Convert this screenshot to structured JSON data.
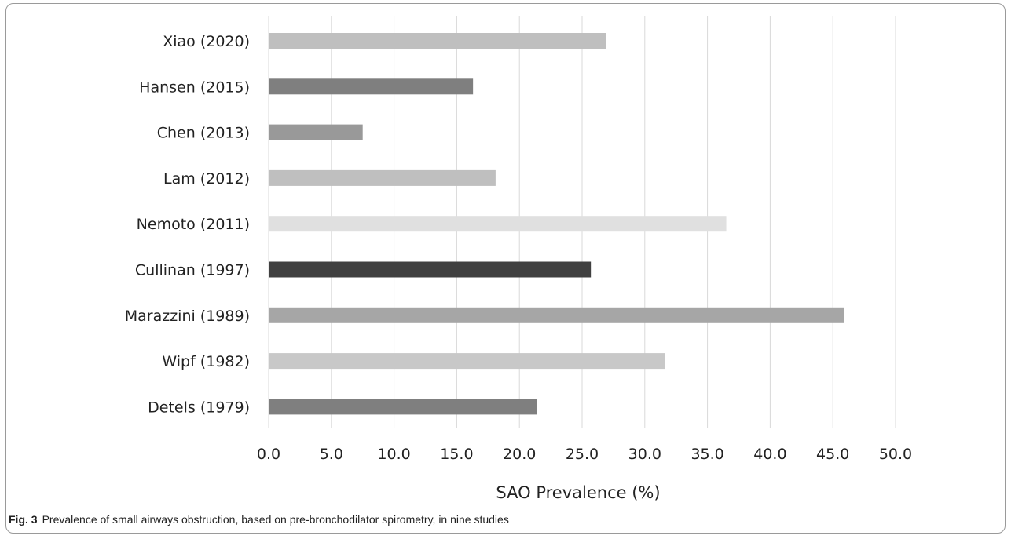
{
  "caption": {
    "label": "Fig. 3",
    "text": "Prevalence of small airways obstruction, based on pre-bronchodilator spirometry, in nine studies"
  },
  "chart_data": {
    "type": "bar",
    "orientation": "horizontal",
    "title": "",
    "xlabel": "SAO Prevalence (%)",
    "ylabel": "",
    "xlim": [
      0,
      50
    ],
    "x_ticks": [
      "0.0",
      "5.0",
      "10.0",
      "15.0",
      "20.0",
      "25.0",
      "30.0",
      "35.0",
      "40.0",
      "45.0",
      "50.0"
    ],
    "grid": "vertical",
    "legend": "none",
    "categories": [
      "Xiao (2020)",
      "Hansen (2015)",
      "Chen (2013)",
      "Lam (2012)",
      "Nemoto (2011)",
      "Cullinan (1997)",
      "Marazzini (1989)",
      "Wipf (1982)",
      "Detels (1979)"
    ],
    "values": [
      26.9,
      16.3,
      7.5,
      18.1,
      36.5,
      25.7,
      45.9,
      31.6,
      21.4
    ],
    "colors": [
      "#bfbfbf",
      "#7f7f7f",
      "#999999",
      "#bfbfbf",
      "#e0e0e0",
      "#404040",
      "#a6a6a6",
      "#c8c8c8",
      "#7f7f7f"
    ]
  }
}
